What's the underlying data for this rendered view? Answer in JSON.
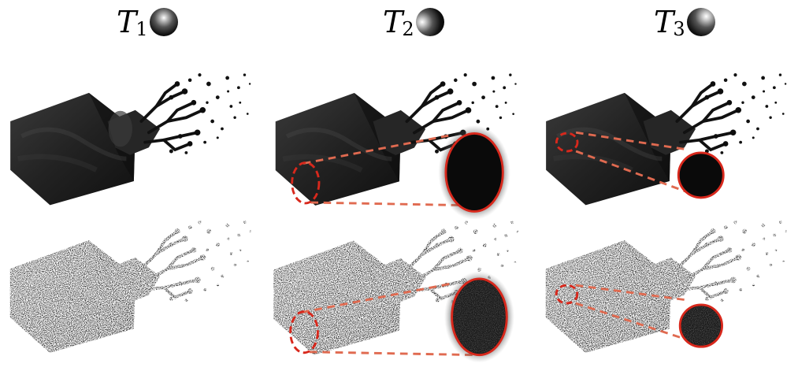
{
  "columns": [
    {
      "label": "T",
      "subscript": "1",
      "sphere_highlight": "center-top"
    },
    {
      "label": "T",
      "subscript": "2",
      "sphere_highlight": "left"
    },
    {
      "label": "T",
      "subscript": "3",
      "sphere_highlight": "top-right"
    }
  ],
  "colors": {
    "background": "#ffffff",
    "volume_dark": "#1c1c1c",
    "annotation_red": "#d8281c",
    "dash_line": "#e06a50"
  },
  "rows": [
    "smooth-render",
    "noisy-render"
  ]
}
